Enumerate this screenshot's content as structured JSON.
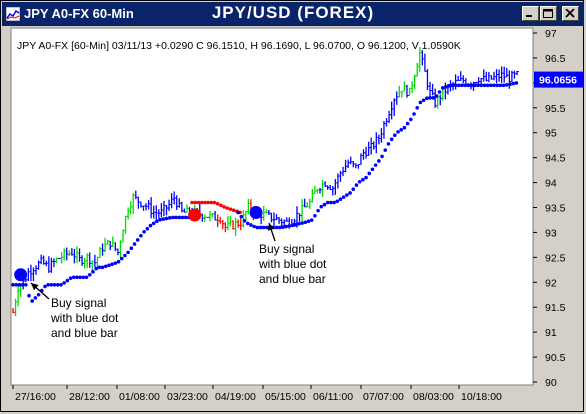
{
  "window": {
    "title_left": "JPY A0-FX 60-Min",
    "title_center": "JPY/USD (FOREX)",
    "buttons": [
      "minimize-icon",
      "maximize-icon",
      "close-icon"
    ]
  },
  "chart_data": {
    "type": "line",
    "style": "ohlc-bars",
    "header": "JPY A0-FX [60-Min] 03/11/13  +0.0290 C 96.1510, H 96.1690, L 96.0700, O 96.1200, V 1.0590K",
    "ylim": [
      90,
      97
    ],
    "yticks": [
      "97",
      "96.5",
      "96",
      "95.5",
      "95",
      "94.5",
      "94",
      "93.5",
      "93",
      "92.5",
      "92",
      "91.5",
      "91",
      "90.5",
      "90"
    ],
    "xticks": [
      "27/16:00",
      "28/12:00",
      "01/08:00",
      "03/23:00",
      "04/19:00",
      "05/15:00",
      "06/11:00",
      "07/07:00",
      "08/03:00",
      "10/18:00"
    ],
    "last_price": "96.0656",
    "colors": {
      "background": "#ffffff",
      "up_bar": "#00dd00",
      "down_bar": "#ff0000",
      "neutral_bar": "#0000ff",
      "price_tag": "#0000ff",
      "grid": "#d8d8d8"
    },
    "close_path": [
      [
        0,
        91.4
      ],
      [
        4,
        91.9
      ],
      [
        8,
        92.0
      ],
      [
        12,
        92.2
      ],
      [
        16,
        92.3
      ],
      [
        22,
        92.4
      ],
      [
        28,
        92.3
      ],
      [
        34,
        92.45
      ],
      [
        40,
        92.55
      ],
      [
        46,
        92.6
      ],
      [
        52,
        92.45
      ],
      [
        58,
        92.5
      ],
      [
        64,
        92.4
      ],
      [
        70,
        92.7
      ],
      [
        76,
        92.8
      ],
      [
        82,
        92.6
      ],
      [
        86,
        93.1
      ],
      [
        90,
        93.5
      ],
      [
        94,
        93.7
      ],
      [
        100,
        93.6
      ],
      [
        106,
        93.5
      ],
      [
        110,
        93.4
      ],
      [
        116,
        93.4
      ],
      [
        122,
        93.55
      ],
      [
        126,
        93.7
      ],
      [
        132,
        93.4
      ],
      [
        140,
        93.4
      ],
      [
        150,
        93.35
      ],
      [
        156,
        93.3
      ],
      [
        162,
        93.3
      ],
      [
        166,
        93.1
      ],
      [
        172,
        93.15
      ],
      [
        178,
        93.2
      ],
      [
        184,
        93.5
      ],
      [
        190,
        93.4
      ],
      [
        196,
        93.35
      ],
      [
        202,
        93.3
      ],
      [
        208,
        93.25
      ],
      [
        214,
        93.2
      ],
      [
        220,
        93.3
      ],
      [
        226,
        93.45
      ],
      [
        232,
        93.6
      ],
      [
        238,
        93.9
      ],
      [
        244,
        94.0
      ],
      [
        250,
        93.9
      ],
      [
        256,
        94.2
      ],
      [
        262,
        94.4
      ],
      [
        268,
        94.3
      ],
      [
        274,
        94.6
      ],
      [
        280,
        94.7
      ],
      [
        286,
        94.9
      ],
      [
        292,
        95.3
      ],
      [
        298,
        95.7
      ],
      [
        304,
        95.9
      ],
      [
        310,
        95.8
      ],
      [
        314,
        96.2
      ],
      [
        318,
        96.6
      ],
      [
        322,
        96.2
      ],
      [
        326,
        95.8
      ],
      [
        330,
        95.6
      ],
      [
        336,
        95.8
      ],
      [
        340,
        95.9
      ],
      [
        346,
        96.0
      ],
      [
        352,
        96.05
      ],
      [
        358,
        96.0
      ],
      [
        364,
        96.1
      ],
      [
        370,
        96.05
      ],
      [
        376,
        96.1
      ],
      [
        382,
        96.15
      ],
      [
        388,
        96.1
      ],
      [
        394,
        96.15
      ]
    ],
    "stop_path": [
      [
        0,
        91.95
      ],
      [
        10,
        91.95
      ],
      [
        14,
        91.6
      ],
      [
        20,
        91.75
      ],
      [
        26,
        91.95
      ],
      [
        30,
        91.95
      ],
      [
        38,
        91.95
      ],
      [
        46,
        92.1
      ],
      [
        52,
        92.1
      ],
      [
        58,
        92.1
      ],
      [
        66,
        92.3
      ],
      [
        70,
        92.3
      ],
      [
        76,
        92.35
      ],
      [
        82,
        92.4
      ],
      [
        90,
        92.6
      ],
      [
        96,
        92.8
      ],
      [
        102,
        93.0
      ],
      [
        108,
        93.15
      ],
      [
        114,
        93.25
      ],
      [
        124,
        93.3
      ],
      [
        134,
        93.3
      ],
      [
        140,
        93.3
      ]
    ],
    "stop_red_path": [
      [
        140,
        93.6
      ],
      [
        150,
        93.6
      ],
      [
        158,
        93.6
      ],
      [
        166,
        93.5
      ],
      [
        172,
        93.45
      ],
      [
        178,
        93.4
      ]
    ],
    "stop_blue2_path": [
      [
        176,
        93.4
      ],
      [
        182,
        93.2
      ],
      [
        190,
        93.1
      ],
      [
        200,
        93.1
      ],
      [
        210,
        93.1
      ],
      [
        220,
        93.15
      ],
      [
        228,
        93.2
      ],
      [
        234,
        93.25
      ],
      [
        240,
        93.5
      ],
      [
        246,
        93.6
      ],
      [
        252,
        93.6
      ],
      [
        258,
        93.7
      ],
      [
        264,
        93.8
      ],
      [
        270,
        94.0
      ],
      [
        276,
        94.1
      ],
      [
        282,
        94.3
      ],
      [
        288,
        94.5
      ],
      [
        294,
        94.8
      ],
      [
        300,
        95.0
      ],
      [
        306,
        95.1
      ],
      [
        312,
        95.3
      ],
      [
        318,
        95.6
      ],
      [
        324,
        95.7
      ],
      [
        330,
        95.7
      ],
      [
        336,
        95.9
      ],
      [
        342,
        95.95
      ],
      [
        350,
        95.95
      ],
      [
        360,
        95.95
      ],
      [
        372,
        95.95
      ],
      [
        384,
        95.95
      ],
      [
        394,
        96.0
      ]
    ],
    "signals": [
      {
        "type": "buy",
        "color": "#0000ff",
        "x": 6,
        "y": 92.15
      },
      {
        "type": "sell",
        "color": "#ff0000",
        "x": 142,
        "y": 93.35
      },
      {
        "type": "buy",
        "color": "#0000ff",
        "x": 190,
        "y": 93.4
      }
    ],
    "annotations": [
      {
        "text_lines": [
          "Buy signal",
          "with blue dot",
          "and blue bar"
        ]
      },
      {
        "text_lines": [
          "Buy signal",
          "with blue dot",
          "and blue bar"
        ]
      }
    ]
  }
}
